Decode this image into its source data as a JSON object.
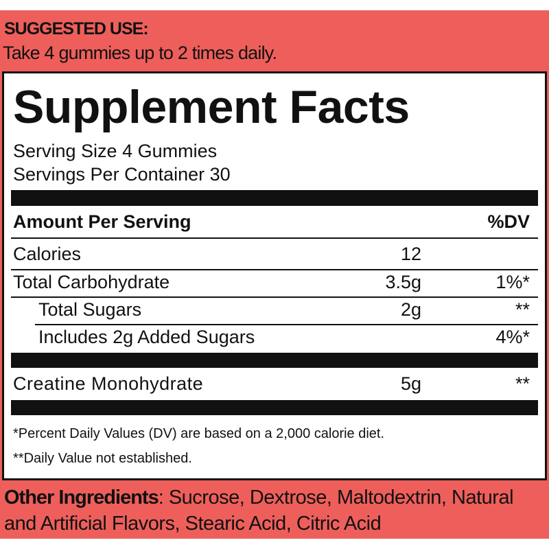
{
  "colors": {
    "band": "#ee5f5b",
    "ink": "#111111"
  },
  "suggested_use": {
    "title": "SUGGESTED USE:",
    "text": "Take 4 gummies up to 2 times daily."
  },
  "facts": {
    "title": "Supplement Facts",
    "serving_size": "Serving Size 4 Gummies",
    "servings_per_container": "Servings Per Container  30",
    "header": {
      "label": "Amount Per Serving",
      "dv": "%DV"
    },
    "rows": [
      {
        "name": "Calories",
        "amount": "12",
        "dv": ""
      },
      {
        "name": "Total Carbohydrate",
        "amount": "3.5g",
        "dv": "1%*"
      },
      {
        "name": "Total Sugars",
        "amount": "2g",
        "dv": "**"
      },
      {
        "name": "Includes 2g Added Sugars",
        "amount": "",
        "dv": "4%*"
      },
      {
        "name": "Creatine Monohydrate",
        "amount": "5g",
        "dv": "**"
      }
    ],
    "footnotes": [
      "*Percent Daily Values (DV) are based on a 2,000 calorie diet.",
      "**Daily Value not established."
    ]
  },
  "other_ingredients": {
    "label": "Other Ingredients",
    "text": ": Sucrose, Dextrose, Maltodextrin, Natural and Artificial Flavors, Stearic Acid, Citric Acid"
  }
}
